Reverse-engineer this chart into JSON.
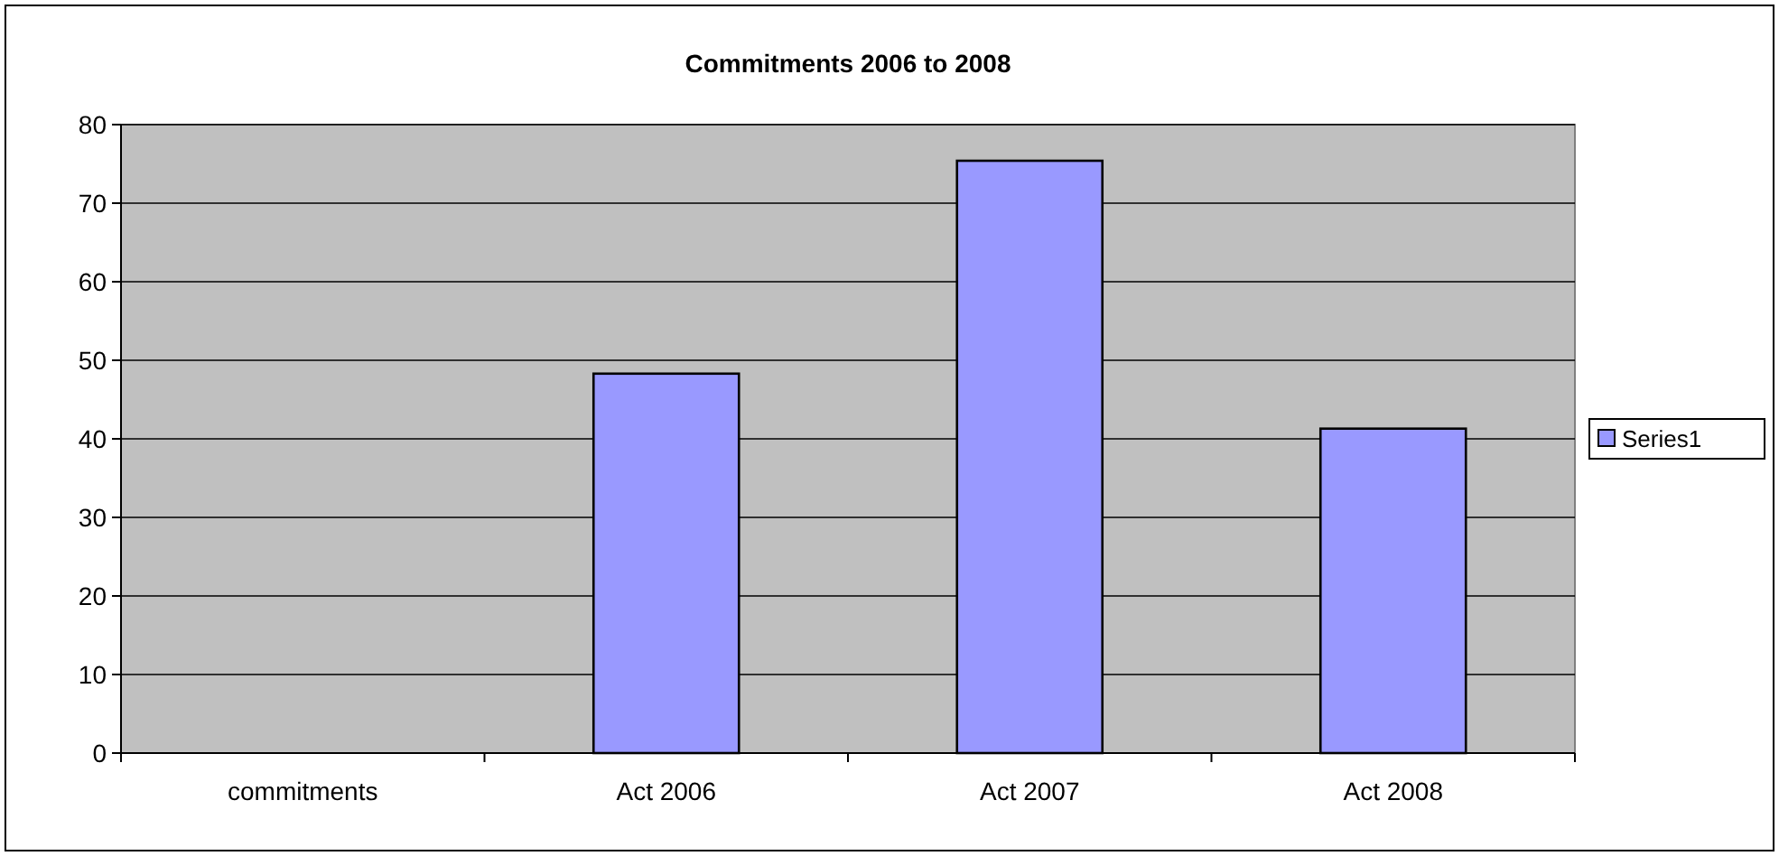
{
  "chart_data": {
    "type": "bar",
    "title": "Commitments 2006 to 2008",
    "categories": [
      "commitments",
      "Act 2006",
      "Act 2007",
      "Act 2008"
    ],
    "series": [
      {
        "name": "Series1",
        "color": "#9999ff",
        "values": [
          null,
          48.3,
          75.4,
          41.3
        ]
      }
    ],
    "ylim": [
      0,
      80
    ],
    "yticks": [
      0,
      10,
      20,
      30,
      40,
      50,
      60,
      70,
      80
    ],
    "grid": "y",
    "legend": "right"
  }
}
